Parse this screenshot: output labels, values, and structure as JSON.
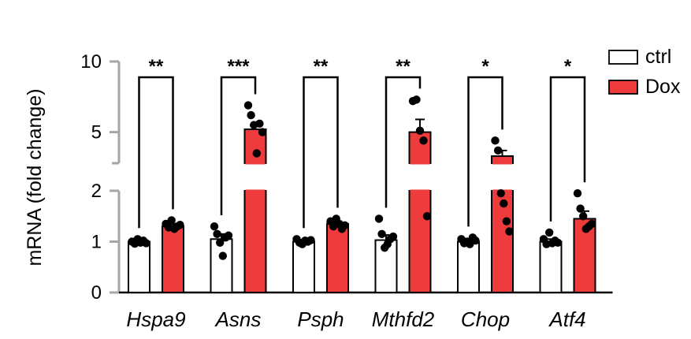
{
  "chart_data": {
    "type": "bar",
    "ylabel": "mRNA (fold change)",
    "y_axis": {
      "broken": true,
      "lower_segment": [
        0,
        2
      ],
      "upper_segment": [
        2.8,
        10
      ],
      "ticks": [
        0,
        1,
        2,
        5,
        10
      ]
    },
    "categories": [
      "Hspa9",
      "Asns",
      "Psph",
      "Mthfd2",
      "Chop",
      "Atf4"
    ],
    "significance": [
      "**",
      "***",
      "**",
      "**",
      "*",
      "*"
    ],
    "series": [
      {
        "name": "ctrl",
        "color": "#ffffff",
        "values": [
          1.0,
          1.05,
          1.0,
          1.03,
          1.0,
          1.0
        ],
        "errors": [
          0.03,
          0.1,
          0.03,
          0.1,
          0.03,
          0.05
        ],
        "points": [
          [
            1.0,
            0.96,
            1.05,
            0.98,
            1.02,
            0.97
          ],
          [
            1.3,
            1.15,
            0.98,
            0.72,
            1.08,
            1.12
          ],
          [
            1.05,
            0.98,
            0.95,
            1.02,
            1.0,
            1.03
          ],
          [
            1.45,
            1.15,
            0.88,
            0.95,
            1.05,
            1.1
          ],
          [
            1.05,
            0.97,
            1.0,
            0.95,
            1.08,
            1.02
          ],
          [
            1.05,
            0.95,
            1.18,
            0.97,
            1.02,
            0.98
          ]
        ]
      },
      {
        "name": "Dox",
        "color": "#ee3b3b",
        "values": [
          1.3,
          5.2,
          1.35,
          5.0,
          3.3,
          1.45
        ],
        "errors": [
          0.05,
          0.4,
          0.05,
          0.9,
          0.4,
          0.15
        ],
        "points": [
          [
            1.35,
            1.28,
            1.42,
            1.25,
            1.3,
            1.33
          ],
          [
            6.9,
            6.2,
            5.5,
            3.5,
            5.6,
            5.0
          ],
          [
            1.4,
            1.3,
            1.45,
            1.35,
            1.25,
            1.32
          ],
          [
            7.2,
            7.3,
            5.1,
            4.4,
            1.5
          ],
          [
            4.4,
            3.7,
            1.95,
            1.75,
            1.4,
            1.2
          ],
          [
            1.95,
            1.65,
            1.5,
            1.25,
            1.3,
            1.35
          ]
        ]
      }
    ],
    "legend": {
      "position": "top-right",
      "entries": [
        "ctrl",
        "Dox"
      ]
    }
  }
}
